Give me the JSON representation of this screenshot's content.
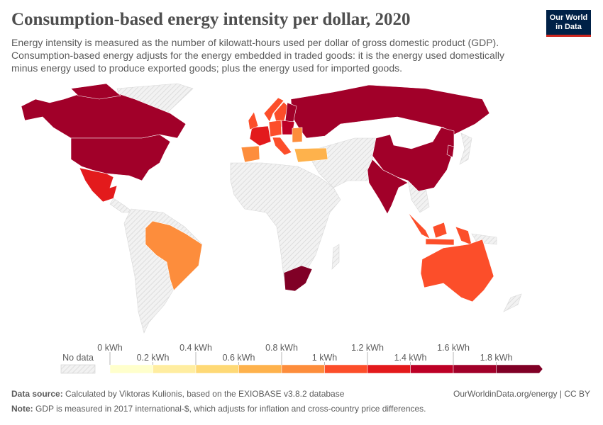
{
  "header": {
    "title": "Consumption-based energy intensity per dollar, 2020",
    "subtitle_lines": [
      "Energy intensity is measured as the number of kilowatt-hours used per dollar of gross domestic product (GDP).",
      "Consumption-based energy adjusts for the energy embedded in traded goods: it is the energy used domestically",
      "minus energy used to produce exported goods; plus the energy used for imported goods."
    ],
    "logo_lines": [
      "Our World",
      "in Data"
    ]
  },
  "colors": {
    "no_data": "#e8e8e8",
    "hatch": "#cfcfcf",
    "border": "#ffffff",
    "logo_bg": "#002147",
    "logo_accent": "#ce261e"
  },
  "chart_data": {
    "type": "choropleth",
    "title": "Consumption-based energy intensity per dollar, 2020",
    "unit": "kWh",
    "legend": {
      "no_data_label": "No data",
      "ticks": [
        "0 kWh",
        "0.2 kWh",
        "0.4 kWh",
        "0.6 kWh",
        "0.8 kWh",
        "1 kWh",
        "1.2 kWh",
        "1.4 kWh",
        "1.6 kWh",
        "1.8 kWh"
      ],
      "bins": [
        [
          0,
          0.2
        ],
        [
          0.2,
          0.4
        ],
        [
          0.4,
          0.6
        ],
        [
          0.6,
          0.8
        ],
        [
          0.8,
          1
        ],
        [
          1,
          1.2
        ],
        [
          1.2,
          1.4
        ],
        [
          1.4,
          1.6
        ],
        [
          1.6,
          1.8
        ],
        [
          1.8,
          null
        ]
      ],
      "colors": [
        "#ffffcc",
        "#ffeda0",
        "#fed976",
        "#feb24c",
        "#fd8d3c",
        "#fc4e2a",
        "#e31a1c",
        "#bd0026",
        "#a10029",
        "#800026"
      ]
    },
    "countries": [
      {
        "name": "Canada",
        "value": 1.7
      },
      {
        "name": "United States",
        "value": 1.7
      },
      {
        "name": "Mexico",
        "value": 1.3
      },
      {
        "name": "Brazil",
        "value": 0.9
      },
      {
        "name": "Spain",
        "value": 0.9
      },
      {
        "name": "France",
        "value": 1.3
      },
      {
        "name": "United Kingdom",
        "value": 1.1
      },
      {
        "name": "Norway",
        "value": 1.1
      },
      {
        "name": "Sweden",
        "value": 1.1
      },
      {
        "name": "Finland",
        "value": 1.7
      },
      {
        "name": "Germany",
        "value": 1.1
      },
      {
        "name": "Poland",
        "value": 1.5
      },
      {
        "name": "Italy",
        "value": 1.1
      },
      {
        "name": "Romania",
        "value": 0.9
      },
      {
        "name": "Turkey",
        "value": 0.7
      },
      {
        "name": "Russia",
        "value": 1.7
      },
      {
        "name": "China",
        "value": 1.7
      },
      {
        "name": "India",
        "value": 1.7
      },
      {
        "name": "South Korea",
        "value": 1.7
      },
      {
        "name": "Indonesia",
        "value": 1.1
      },
      {
        "name": "Australia",
        "value": 1.1
      },
      {
        "name": "South Africa",
        "value": 1.9
      }
    ]
  },
  "footer": {
    "source_label": "Data source:",
    "source_text": " Calculated by Viktoras Kulionis, based on the EXIOBASE v3.8.2 database",
    "note_label": "Note:",
    "note_text": " GDP is measured in 2017 international-$, which adjusts for inflation and cross-country price differences.",
    "link": "OurWorldinData.org/energy | CC BY"
  }
}
